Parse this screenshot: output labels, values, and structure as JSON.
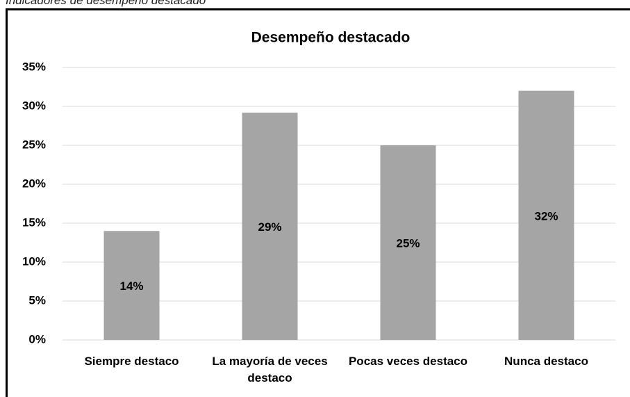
{
  "caption": "Indicadores de desempeño destacado",
  "chart_data": {
    "type": "bar",
    "title": "Desempeño destacado",
    "categories": [
      "Siempre destaco",
      "La mayoría de veces destaco",
      "Pocas veces destaco",
      "Nunca destaco"
    ],
    "values": [
      14,
      29.2,
      25,
      32
    ],
    "value_labels": [
      "14%",
      "29%",
      "25%",
      "32%"
    ],
    "color": "#a5a5a5",
    "ylim": [
      0,
      35
    ],
    "yticks": [
      {
        "value": 0,
        "label": "0%"
      },
      {
        "value": 5,
        "label": "5%"
      },
      {
        "value": 10,
        "label": "10%"
      },
      {
        "value": 15,
        "label": "15%"
      },
      {
        "value": 20,
        "label": "20%"
      },
      {
        "value": 25,
        "label": "25%"
      },
      {
        "value": 30,
        "label": "30%"
      },
      {
        "value": 35,
        "label": "35%"
      }
    ],
    "grid": true
  }
}
